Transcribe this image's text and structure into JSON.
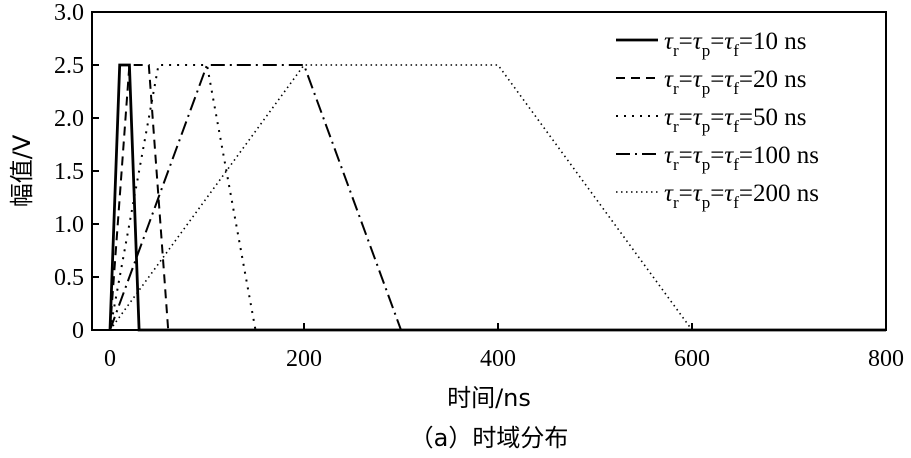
{
  "chart_data": {
    "type": "line",
    "xlabel": "时间/ns",
    "ylabel": "幅值/V",
    "caption": "（a）时域分布",
    "xlim": [
      0,
      800
    ],
    "ylim": [
      0,
      3.0
    ],
    "xticks": [
      0,
      200,
      400,
      600,
      800
    ],
    "xtick_labels": [
      "0",
      "200",
      "400",
      "600",
      "800"
    ],
    "yticks": [
      0,
      0.5,
      1.0,
      1.5,
      2.0,
      2.5,
      3.0
    ],
    "ytick_labels": [
      "0",
      "0.5",
      "1.0",
      "1.5",
      "2.0",
      "2.5",
      "3.0"
    ],
    "grid": false,
    "legend_position": "top-right",
    "series": [
      {
        "name": "τr=τp=τf=10 ns",
        "legend": {
          "tau": "τ",
          "s1": "r",
          "s2": "p",
          "s3": "f",
          "eq": "=",
          "value": "10 ns"
        },
        "line_style": "solid",
        "stroke_width": 2.8,
        "x": [
          0,
          10,
          20,
          30,
          800
        ],
        "y": [
          0,
          2.5,
          2.5,
          0,
          0
        ]
      },
      {
        "name": "τr=τp=τf=20 ns",
        "legend": {
          "tau": "τ",
          "s1": "r",
          "s2": "p",
          "s3": "f",
          "eq": "=",
          "value": "20 ns"
        },
        "line_style": "dashed",
        "stroke_width": 2,
        "x": [
          0,
          20,
          40,
          60
        ],
        "y": [
          0,
          2.5,
          2.5,
          0
        ]
      },
      {
        "name": "τr=τp=τf=50 ns",
        "legend": {
          "tau": "τ",
          "s1": "r",
          "s2": "p",
          "s3": "f",
          "eq": "=",
          "value": "50 ns"
        },
        "line_style": "dotted",
        "stroke_width": 2,
        "x": [
          0,
          50,
          100,
          150
        ],
        "y": [
          0,
          2.5,
          2.5,
          0
        ]
      },
      {
        "name": "τr=τp=τf=100 ns",
        "legend": {
          "tau": "τ",
          "s1": "r",
          "s2": "p",
          "s3": "f",
          "eq": "=",
          "value": "100 ns"
        },
        "line_style": "dashdot",
        "stroke_width": 2,
        "x": [
          0,
          100,
          200,
          300
        ],
        "y": [
          0,
          2.5,
          2.5,
          0
        ]
      },
      {
        "name": "τr=τp=τf=200 ns",
        "legend": {
          "tau": "τ",
          "s1": "r",
          "s2": "p",
          "s3": "f",
          "eq": "=",
          "value": "200 ns"
        },
        "line_style": "finedot",
        "stroke_width": 1.6,
        "x": [
          0,
          200,
          400,
          600
        ],
        "y": [
          0,
          2.5,
          2.5,
          0
        ]
      }
    ]
  }
}
